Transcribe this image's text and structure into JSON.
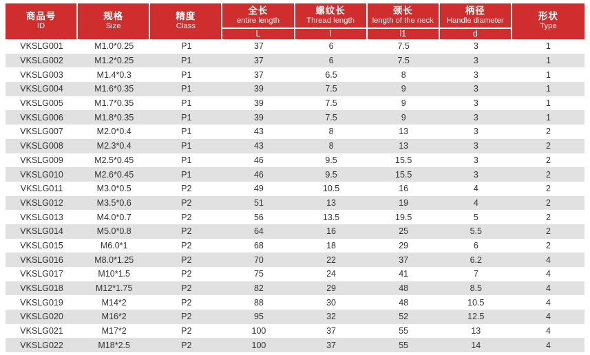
{
  "chart_data": {
    "type": "table",
    "title": "",
    "columns": [
      {
        "zh": "商品号",
        "en": "ID",
        "sub": ""
      },
      {
        "zh": "规格",
        "en": "Size",
        "sub": ""
      },
      {
        "zh": "精度",
        "en": "Class",
        "sub": ""
      },
      {
        "zh": "全长",
        "en": "entire length",
        "sub": "L"
      },
      {
        "zh": "螺纹长",
        "en": "Thread length",
        "sub": "l"
      },
      {
        "zh": "颈长",
        "en": "length of the neck",
        "sub": "l1"
      },
      {
        "zh": "柄径",
        "en": "Handle diameter",
        "sub": "d"
      },
      {
        "zh": "形状",
        "en": "Type",
        "sub": ""
      }
    ],
    "rows": [
      [
        "VKSLG001",
        "M1.0*0.25",
        "P1",
        "37",
        "6",
        "7.5",
        "3",
        "1"
      ],
      [
        "VKSLG002",
        "M1.2*0.25",
        "P1",
        "37",
        "6",
        "7.5",
        "3",
        "1"
      ],
      [
        "VKSLG003",
        "M1.4*0.3",
        "P1",
        "37",
        "6.5",
        "8",
        "3",
        "1"
      ],
      [
        "VKSLG004",
        "M1.6*0.35",
        "P1",
        "39",
        "7.5",
        "9",
        "3",
        "1"
      ],
      [
        "VKSLG005",
        "M1.7*0.35",
        "P1",
        "39",
        "7.5",
        "9",
        "3",
        "1"
      ],
      [
        "VKSLG006",
        "M1.8*0.35",
        "P1",
        "39",
        "7.5",
        "9",
        "3",
        "1"
      ],
      [
        "VKSLG007",
        "M2.0*0.4",
        "P1",
        "43",
        "8",
        "13",
        "3",
        "2"
      ],
      [
        "VKSLG008",
        "M2.3*0.4",
        "P1",
        "43",
        "8",
        "13",
        "3",
        "2"
      ],
      [
        "VKSLG009",
        "M2.5*0.45",
        "P1",
        "46",
        "9.5",
        "15.5",
        "3",
        "2"
      ],
      [
        "VKSLG010",
        "M2.6*0.45",
        "P1",
        "46",
        "9.5",
        "15.5",
        "3",
        "2"
      ],
      [
        "VKSLG011",
        "M3.0*0.5",
        "P2",
        "49",
        "10.5",
        "16",
        "4",
        "2"
      ],
      [
        "VKSLG012",
        "M3.5*0.6",
        "P2",
        "51",
        "13",
        "19",
        "4",
        "2"
      ],
      [
        "VKSLG013",
        "M4.0*0.7",
        "P2",
        "56",
        "13.5",
        "19.5",
        "5",
        "2"
      ],
      [
        "VKSLG014",
        "M5.0*0.8",
        "P2",
        "64",
        "16",
        "25",
        "5.5",
        "2"
      ],
      [
        "VKSLG015",
        "M6.0*1",
        "P2",
        "68",
        "18",
        "29",
        "6",
        "2"
      ],
      [
        "VKSLG016",
        "M8.0*1.25",
        "P2",
        "70",
        "22",
        "37",
        "6.2",
        "4"
      ],
      [
        "VKSLG017",
        "M10*1.5",
        "P2",
        "75",
        "24",
        "41",
        "7",
        "4"
      ],
      [
        "VKSLG018",
        "M12*1.75",
        "P2",
        "82",
        "29",
        "48",
        "8.5",
        "4"
      ],
      [
        "VKSLG019",
        "M14*2",
        "P2",
        "88",
        "30",
        "48",
        "10.5",
        "4"
      ],
      [
        "VKSLG020",
        "M16*2",
        "P2",
        "95",
        "32",
        "52",
        "12.5",
        "4"
      ],
      [
        "VKSLG021",
        "M17*2",
        "P2",
        "100",
        "37",
        "55",
        "13",
        "4"
      ],
      [
        "VKSLG022",
        "M18*2.5",
        "P2",
        "100",
        "37",
        "55",
        "14",
        "4"
      ]
    ]
  },
  "colors": {
    "header_bg": "#d02e2e",
    "header_text": "#ffffff",
    "stripe": "#e1e1e1",
    "row_text": "#333333",
    "page_bg": "#ffffff"
  }
}
